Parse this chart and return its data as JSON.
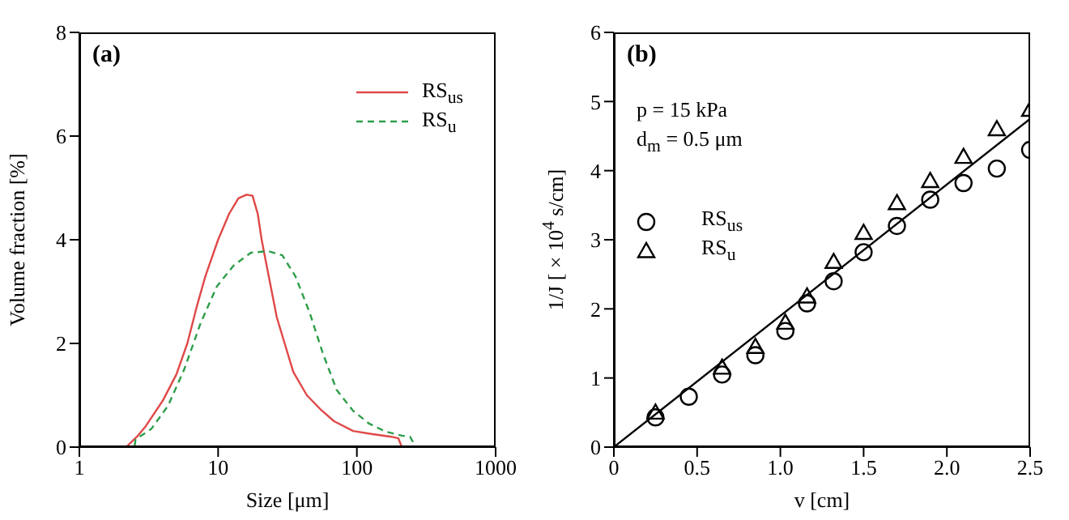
{
  "chart_data": [
    {
      "type": "line",
      "title": "(a)",
      "xlabel": "Size [μm]",
      "ylabel": "Volume fraction [%]",
      "log": "x",
      "xlim": [
        1,
        1000
      ],
      "xticks": [
        1,
        10,
        100,
        1000
      ],
      "ylim": [
        0,
        8
      ],
      "yticks": [
        0,
        2,
        4,
        6,
        8
      ],
      "legend": "top right",
      "marker": "none",
      "series": [
        {
          "name": "RS$_{us}$",
          "color": "#e04848",
          "line_style": "solid",
          "x": [
            1,
            2.17,
            2.6,
            3.0,
            4.0,
            5.0,
            6.0,
            7.0,
            8.1,
            10,
            12,
            14,
            16,
            17.7,
            19.3,
            20.6,
            22,
            26.5,
            34.8,
            43.6,
            54.6,
            68.4,
            94,
            130,
            177,
            199,
            211,
            1000
          ],
          "values": [
            0,
            0,
            0.2,
            0.4,
            0.9,
            1.4,
            2.0,
            2.7,
            3.3,
            4.0,
            4.5,
            4.8,
            4.87,
            4.85,
            4.5,
            4.0,
            3.6,
            2.5,
            1.45,
            1.0,
            0.73,
            0.5,
            0.31,
            0.25,
            0.2,
            0.17,
            0,
            0
          ]
        },
        {
          "name": "RS$_{u}$",
          "color": "#2e9e4a",
          "line_style": "dashed",
          "x": [
            1,
            2.5,
            2.54,
            3.3,
            4.36,
            5.7,
            7.5,
            9.8,
            12.9,
            17.2,
            23,
            29,
            36,
            45.6,
            57,
            71.6,
            94,
            123,
            161,
            211,
            242,
            265,
            1000
          ],
          "values": [
            0,
            0,
            0.15,
            0.35,
            0.8,
            1.5,
            2.4,
            3.1,
            3.5,
            3.75,
            3.78,
            3.7,
            3.3,
            2.6,
            1.8,
            1.1,
            0.7,
            0.45,
            0.3,
            0.22,
            0.2,
            0,
            0
          ]
        }
      ]
    },
    {
      "type": "scatter",
      "title": "(b)",
      "xlabel": "v [cm]",
      "ylabel": "1/J [ × 10$^{4}$ s/cm]",
      "xlim": [
        0,
        2.5
      ],
      "xticks": [
        0,
        0.5,
        {
          "value": 1,
          "label": "1.0"
        },
        1.5,
        {
          "value": 2,
          "label": "2.0"
        },
        2.5
      ],
      "ylim": [
        0,
        6
      ],
      "yticks": [
        0,
        1,
        2,
        3,
        4,
        5,
        6
      ],
      "legend": "left",
      "annotations": [
        "p  = 15 kPa",
        "d$_{m}$ = 0.5 μm"
      ],
      "series": [
        {
          "name": "RS$_{us}$",
          "color": "#000000",
          "marker": "circle",
          "x": [
            0.25,
            0.45,
            0.65,
            0.85,
            1.03,
            1.16,
            1.32,
            1.5,
            1.7,
            1.9,
            2.1,
            2.3,
            2.5
          ],
          "values": [
            0.43,
            0.73,
            1.05,
            1.33,
            1.68,
            2.08,
            2.4,
            2.82,
            3.2,
            3.58,
            3.82,
            4.03,
            4.3
          ]
        },
        {
          "name": "RS$_{u}$",
          "color": "#000000",
          "marker": "triangle",
          "x": [
            0.25,
            0.65,
            0.85,
            1.03,
            1.16,
            1.32,
            1.5,
            1.7,
            1.9,
            2.1,
            2.3,
            2.5
          ],
          "values": [
            0.5,
            1.15,
            1.45,
            1.8,
            2.18,
            2.68,
            3.1,
            3.53,
            3.85,
            4.2,
            4.6,
            4.88
          ]
        },
        {
          "type": "line",
          "color": "#000000",
          "line_style": "solid",
          "marker": "none",
          "x": [
            0,
            2.5
          ],
          "values": [
            0,
            4.75
          ]
        }
      ]
    }
  ]
}
